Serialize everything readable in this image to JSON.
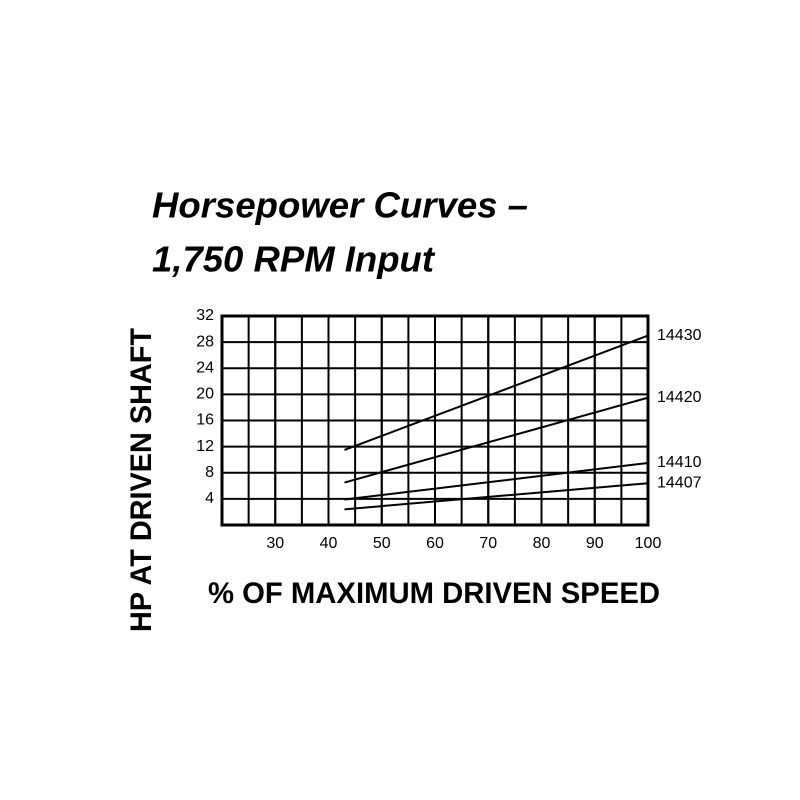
{
  "chart_data": {
    "type": "line",
    "title": [
      "Horsepower Curves –",
      "1,750 RPM Input"
    ],
    "x_label": "% OF MAXIMUM DRIVEN SPEED",
    "y_label": "HP AT DRIVEN SHAFT",
    "x": [
      43,
      100
    ],
    "series": [
      {
        "name": "14430",
        "color": "#000000",
        "values": [
          11.5,
          29
        ]
      },
      {
        "name": "14420",
        "color": "#000000",
        "values": [
          6.5,
          19.5
        ]
      },
      {
        "name": "14410",
        "color": "#000000",
        "values": [
          3.9,
          9.5
        ]
      },
      {
        "name": "14407",
        "color": "#000000",
        "values": [
          2.4,
          6.4
        ]
      }
    ],
    "xlim": [
      20,
      100
    ],
    "xticks": [
      30,
      40,
      50,
      60,
      70,
      80,
      90,
      100
    ],
    "ylim": [
      0,
      32
    ],
    "yticks": [
      4,
      8,
      12,
      16,
      20,
      24,
      28,
      32
    ],
    "grid": true
  }
}
